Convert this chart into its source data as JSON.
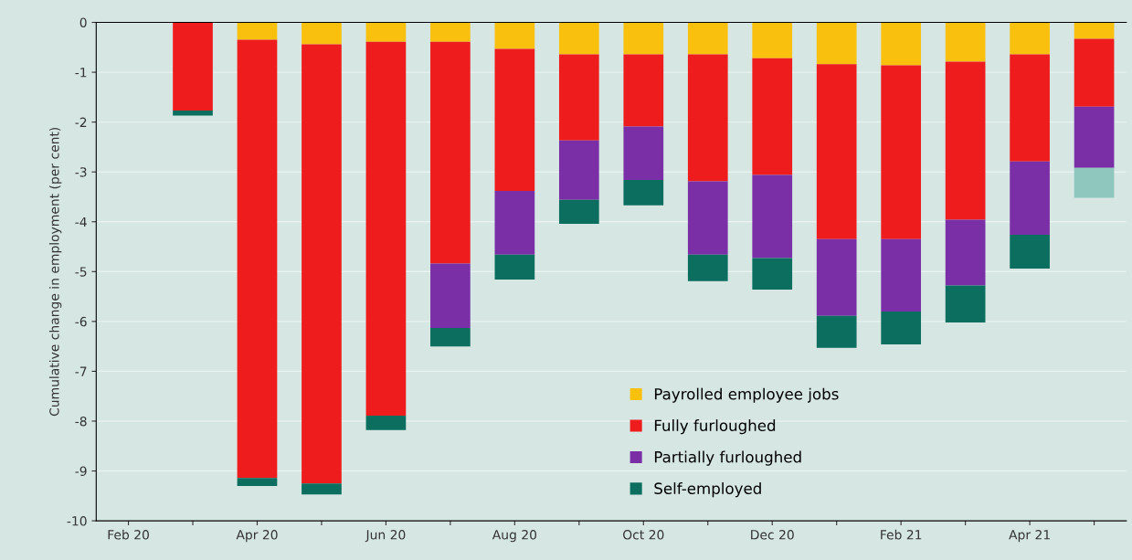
{
  "chart_data": {
    "type": "bar",
    "stacked": true,
    "ylabel": "Cumulative change in employment (per cent)",
    "categories": [
      "Feb 20",
      null,
      "Apr 20",
      null,
      "Jun 20",
      null,
      "Aug 20",
      null,
      "Oct 20",
      null,
      "Dec 20",
      null,
      "Feb 21",
      null,
      "Apr 21",
      null
    ],
    "series": [
      {
        "name": "Payrolled employee jobs",
        "color": "#f9c10e",
        "values": [
          0,
          0,
          -0.35,
          -0.44,
          -0.39,
          -0.39,
          -0.53,
          -0.64,
          -0.64,
          -0.64,
          -0.72,
          -0.84,
          -0.86,
          -0.79,
          -0.64,
          -0.33
        ]
      },
      {
        "name": "Fully furloughed",
        "color": "#ee1c1c",
        "values": [
          0,
          -1.77,
          -8.79,
          -8.81,
          -7.5,
          -4.45,
          -2.85,
          -1.73,
          -1.45,
          -2.55,
          -2.34,
          -3.51,
          -3.49,
          -3.17,
          -2.15,
          -1.36
        ]
      },
      {
        "name": "Partially furloughed",
        "color": "#7a2fa6",
        "values": [
          0,
          0,
          0,
          0,
          0,
          -1.29,
          -1.28,
          -1.19,
          -1.07,
          -1.47,
          -1.67,
          -1.54,
          -1.45,
          -1.32,
          -1.47,
          -1.23
        ]
      },
      {
        "name": "Self-employed",
        "color": "#0b6e5e",
        "colors": [
          "#0b6e5e",
          "#0b6e5e",
          "#0b6e5e",
          "#0b6e5e",
          "#0b6e5e",
          "#0b6e5e",
          "#0b6e5e",
          "#0b6e5e",
          "#0b6e5e",
          "#0b6e5e",
          "#0b6e5e",
          "#0b6e5e",
          "#0b6e5e",
          "#0b6e5e",
          "#0b6e5e",
          "#8fc6bd"
        ],
        "values": [
          0,
          -0.1,
          -0.16,
          -0.22,
          -0.29,
          -0.37,
          -0.5,
          -0.48,
          -0.51,
          -0.53,
          -0.63,
          -0.64,
          -0.66,
          -0.74,
          -0.68,
          -0.6
        ]
      }
    ],
    "ylim": [
      -10,
      0
    ],
    "yticks": [
      -10,
      -9,
      -8,
      -7,
      -6,
      -5,
      -4,
      -3,
      -2,
      -1,
      0
    ],
    "grid": "y",
    "legend": "bottom"
  }
}
